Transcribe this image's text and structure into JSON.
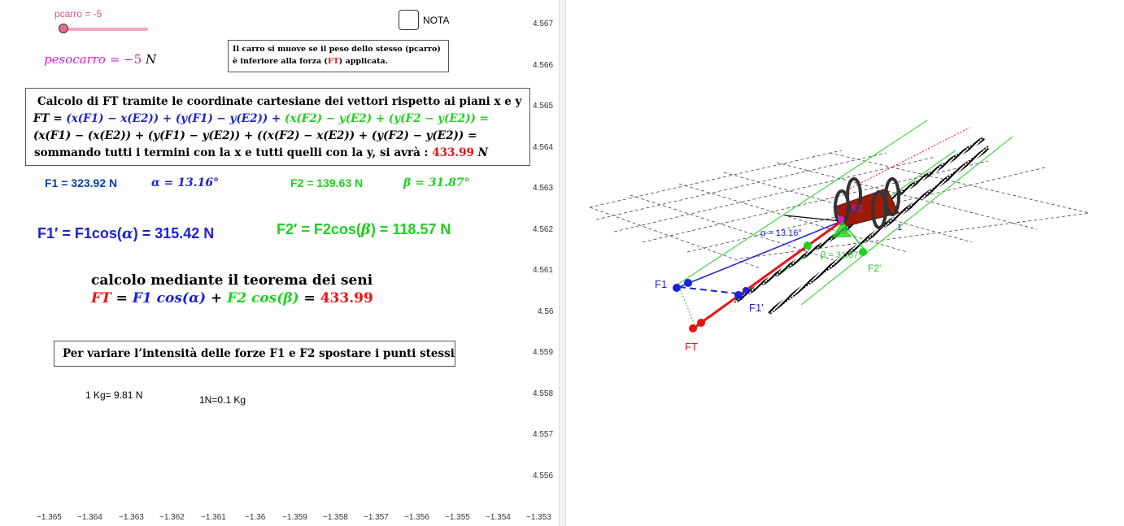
{
  "slider": {
    "label": "pcarro = -5",
    "value": -5,
    "min": -5,
    "max": 5
  },
  "pesocarro": {
    "label": "pesocarro",
    "eq": " = ",
    "value": "−5",
    "unit": "N"
  },
  "nota": {
    "label": "NOTA",
    "checked": false
  },
  "note_box": {
    "line1": "Il carro si muove se il peso dello stesso (pcarro)",
    "line2_a": "è inferiore alla forza (",
    "line2_ft": "FT",
    "line2_b": ") applicata."
  },
  "calc_box": {
    "title": "Calcolo di FT tramite le coordinate cartesiane dei vettori rispetto ai piani x e y",
    "ft_label": "FT = ",
    "line2_blue": "(x(F1) − x(E2)) + (y(F1) − y(E2)) + ",
    "line2_green": "(x(F2) − y(E2) + (y(F2 − y(E2)) =",
    "line3": "(x(F1) − (x(E2)) + (y(F1) − y(E2)) + ((x(F2) − x(E2)) + (y(F2) − y(E2)) =",
    "line4_text": "sommando tutti i termini con la x e tutti quelli con la y,  si avrà : ",
    "line4_value": "433.99",
    "line4_unit": "N"
  },
  "values": {
    "f1": "F1 = 323.92 N",
    "alpha": "α = 13.16°",
    "f2": "F2 = 139.63 N",
    "beta": "β = 31.87°",
    "f1p_label": "F1′ = F1cos(",
    "f1p_alpha": "α",
    "f1p_rest": ") = 315.42 N",
    "f2p_label": "F2′ = F2cos(",
    "f2p_beta": "β",
    "f2p_rest": ") = 118.57 N"
  },
  "seni": {
    "title": "calcolo mediante il teorema dei seni",
    "ft": "FT",
    "eq": " = ",
    "f1": "F1 cos(α)",
    "plus": " + ",
    "f2": "F2 cos(β)",
    "eq2": " = ",
    "value": "433.99"
  },
  "instruction_box": {
    "text": "Per variare l’intensità delle forze F1 e F2 spostare i punti stessi"
  },
  "conversions": {
    "kg": "1 Kg= 9.81 N",
    "n": "1N=0.1 Kg"
  },
  "y_ticks": [
    "4.567",
    "4.566",
    "4.565",
    "4.564",
    "4.563",
    "4.562",
    "4.561",
    "4.56",
    "4.559",
    "4.558",
    "4.557",
    "4.556"
  ],
  "x_ticks": [
    "−1.365",
    "−1.364",
    "−1.363",
    "−1.362",
    "−1.361",
    "−1.36",
    "−1.359",
    "−1.358",
    "−1.357",
    "−1.356",
    "−1.355",
    "−1.354",
    "−1.353"
  ],
  "graphics3d": {
    "f1": "F1",
    "f1p": "F1'",
    "ft": "FT",
    "f2p": "F2'",
    "alpha": "α = 13.16°",
    "beta": "β = 31.87°",
    "e2": "E2",
    "one": "1"
  },
  "colors": {
    "blue": "#1a22d8",
    "green": "#20d020",
    "red": "#ee1111",
    "magenta": "#d020d0",
    "pink": "#f4a6c0"
  }
}
